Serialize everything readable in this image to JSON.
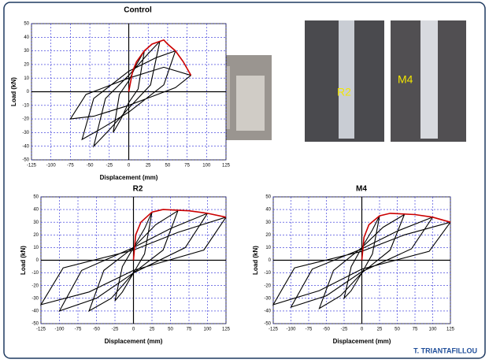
{
  "chart_data": [
    {
      "type": "line",
      "title": "Control",
      "x_label": "Displacement  (mm)",
      "y_label": "Load  (kN)",
      "xlim": [
        -125,
        125
      ],
      "ylim": [
        -50,
        50
      ],
      "xticks": [
        -125,
        -100,
        -75,
        -50,
        -25,
        0,
        25,
        50,
        75,
        100,
        125
      ],
      "yticks": [
        -50,
        -40,
        -30,
        -20,
        -10,
        0,
        10,
        20,
        30,
        40,
        50
      ],
      "grid": true,
      "series": [
        {
          "color": "#000000",
          "x": [
            20,
            12,
            0,
            -10,
            -20,
            -12,
            0,
            10,
            20,
            null,
            40,
            28,
            0,
            -25,
            -45,
            -30,
            0,
            25,
            40,
            null,
            60,
            45,
            0,
            -35,
            -60,
            -45,
            0,
            35,
            60,
            null,
            80,
            60,
            0,
            -45,
            -75,
            -55,
            0,
            45,
            80
          ],
          "values": [
            30,
            2,
            -8,
            -20,
            -30,
            -2,
            8,
            20,
            30,
            null,
            37,
            5,
            -12,
            -28,
            -40,
            -5,
            12,
            28,
            37,
            null,
            30,
            5,
            -15,
            -27,
            -35,
            -5,
            15,
            25,
            30,
            null,
            12,
            3,
            -10,
            -18,
            -20,
            -2,
            10,
            18,
            12
          ]
        },
        {
          "color": "#cc0000",
          "x": [
            0,
            5,
            10,
            20,
            30,
            40,
            45,
            50,
            60,
            70,
            80
          ],
          "values": [
            0,
            15,
            22,
            30,
            35,
            37,
            38,
            35,
            30,
            22,
            12
          ]
        }
      ]
    },
    {
      "type": "line",
      "title": "R2",
      "x_label": "Displacement (mm)",
      "y_label": "Load (kN)",
      "xlim": [
        -125,
        125
      ],
      "ylim": [
        -50,
        50
      ],
      "xticks": [
        -125,
        -100,
        -75,
        -50,
        -25,
        0,
        25,
        50,
        75,
        100,
        125
      ],
      "yticks": [
        -50,
        -40,
        -30,
        -20,
        -10,
        0,
        10,
        20,
        30,
        40,
        50
      ],
      "grid": true,
      "series": [
        {
          "color": "#000000",
          "x": [
            25,
            15,
            0,
            -15,
            -25,
            -15,
            0,
            15,
            25,
            null,
            60,
            40,
            0,
            -30,
            -60,
            -40,
            0,
            30,
            60,
            null,
            100,
            70,
            0,
            -50,
            -100,
            -70,
            0,
            50,
            100,
            null,
            125,
            95,
            0,
            -60,
            -125,
            -95,
            0,
            60,
            125
          ],
          "values": [
            38,
            5,
            -10,
            -25,
            -32,
            -5,
            10,
            25,
            38,
            null,
            39,
            8,
            -10,
            -30,
            -40,
            -8,
            10,
            28,
            39,
            null,
            37,
            10,
            -10,
            -30,
            -40,
            -8,
            10,
            25,
            37,
            null,
            34,
            8,
            -8,
            -25,
            -35,
            -6,
            8,
            22,
            34
          ]
        },
        {
          "color": "#cc0000",
          "x": [
            0,
            3,
            10,
            25,
            40,
            75,
            100,
            125
          ],
          "values": [
            0,
            20,
            30,
            38,
            40,
            39,
            37,
            34
          ]
        }
      ]
    },
    {
      "type": "line",
      "title": "M4",
      "x_label": "Displacement (mm)",
      "y_label": "Load (kN)",
      "xlim": [
        -125,
        125
      ],
      "ylim": [
        -50,
        50
      ],
      "xticks": [
        -125,
        -100,
        -75,
        -50,
        -25,
        0,
        25,
        50,
        75,
        100,
        125
      ],
      "yticks": [
        -50,
        -40,
        -30,
        -20,
        -10,
        0,
        10,
        20,
        30,
        40,
        50
      ],
      "grid": true,
      "series": [
        {
          "color": "#000000",
          "x": [
            25,
            15,
            0,
            -15,
            -25,
            -15,
            0,
            15,
            25,
            null,
            60,
            40,
            0,
            -30,
            -60,
            -40,
            0,
            30,
            60,
            null,
            100,
            70,
            0,
            -50,
            -100,
            -70,
            0,
            50,
            100,
            null,
            125,
            95,
            0,
            -60,
            -125,
            -95,
            0,
            60,
            125
          ],
          "values": [
            35,
            5,
            -10,
            -24,
            -30,
            -5,
            10,
            24,
            35,
            null,
            36,
            8,
            -10,
            -28,
            -38,
            -8,
            10,
            26,
            36,
            null,
            34,
            9,
            -9,
            -28,
            -37,
            -7,
            9,
            23,
            34,
            null,
            30,
            7,
            -7,
            -24,
            -35,
            -6,
            7,
            20,
            30
          ]
        },
        {
          "color": "#cc0000",
          "x": [
            0,
            3,
            10,
            25,
            40,
            75,
            100,
            125
          ],
          "values": [
            0,
            18,
            28,
            35,
            37,
            36,
            34,
            30
          ]
        }
      ]
    }
  ],
  "photo_labels": [
    "R2",
    "M4"
  ],
  "footer": "T. TRIANTAFILLOU"
}
